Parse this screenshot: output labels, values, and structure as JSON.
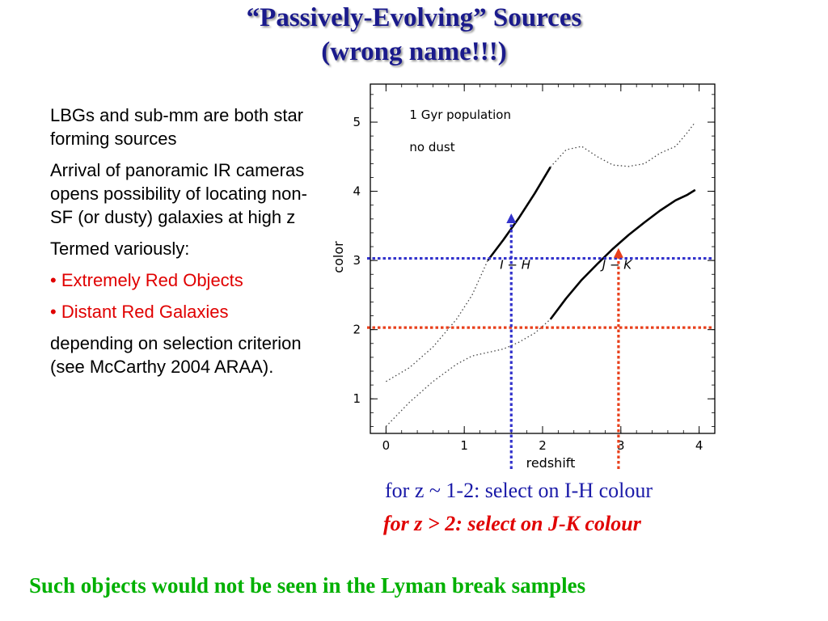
{
  "slide": {
    "title_line1": "“Passively-Evolving” Sources",
    "title_line2": "(wrong name!!!)",
    "bullets": {
      "p1": "LBGs and sub-mm are both star forming sources",
      "p2": "Arrival of panoramic IR cameras opens possibility of locating non-SF (or dusty) galaxies at high z",
      "p3": "Termed variously:",
      "p4_bullet": "• ",
      "p4": "Extremely Red Objects",
      "p5_bullet": "• ",
      "p5": "Distant Red Galaxies",
      "p6": "depending on selection criterion (see McCarthy 2004 ARAA)."
    },
    "caption1": "for z ~ 1-2: select on I-H colour",
    "caption2": "for z > 2: select on J-K colour",
    "footer": "Such objects would not be seen in the Lyman break samples",
    "colors": {
      "title": "#1a1a8c",
      "red": "#e00000",
      "blue": "#1a1aa8",
      "green": "#00b000",
      "guide_blue": "#3333cc",
      "guide_red": "#e8401c"
    }
  },
  "chart_data": {
    "type": "line",
    "xlabel": "redshift",
    "ylabel": "color",
    "xlim": [
      -0.2,
      4.2
    ],
    "ylim": [
      0.5,
      5.55
    ],
    "xticks": [
      0,
      1,
      2,
      3,
      4
    ],
    "yticks": [
      1,
      2,
      3,
      4,
      5
    ],
    "annotations": [
      "1 Gyr population",
      "no dust"
    ],
    "series": [
      {
        "name": "I − H",
        "label_at": [
          1.65,
          2.88
        ],
        "dotted": [
          [
            0,
            1.25
          ],
          [
            0.3,
            1.45
          ],
          [
            0.6,
            1.75
          ],
          [
            0.9,
            2.15
          ],
          [
            1.1,
            2.5
          ],
          [
            1.3,
            3.0
          ]
        ],
        "solid": [
          [
            1.3,
            3.0
          ],
          [
            1.5,
            3.3
          ],
          [
            1.7,
            3.62
          ],
          [
            1.9,
            3.97
          ],
          [
            2.1,
            4.35
          ]
        ],
        "dotted_end": [
          [
            2.1,
            4.35
          ],
          [
            2.3,
            4.6
          ],
          [
            2.5,
            4.65
          ],
          [
            2.7,
            4.5
          ],
          [
            2.9,
            4.38
          ],
          [
            3.1,
            4.36
          ],
          [
            3.3,
            4.4
          ],
          [
            3.5,
            4.55
          ],
          [
            3.7,
            4.65
          ],
          [
            3.85,
            4.85
          ],
          [
            3.95,
            5.0
          ]
        ]
      },
      {
        "name": "J − K",
        "label_at": [
          2.95,
          2.88
        ],
        "dotted": [
          [
            0.0,
            0.6
          ],
          [
            0.3,
            0.95
          ],
          [
            0.6,
            1.25
          ],
          [
            0.9,
            1.5
          ],
          [
            1.1,
            1.62
          ],
          [
            1.3,
            1.67
          ],
          [
            1.5,
            1.72
          ],
          [
            1.7,
            1.82
          ],
          [
            1.9,
            1.95
          ],
          [
            2.1,
            2.15
          ]
        ],
        "solid": [
          [
            2.1,
            2.15
          ],
          [
            2.3,
            2.45
          ],
          [
            2.5,
            2.72
          ],
          [
            2.7,
            2.95
          ],
          [
            2.9,
            3.17
          ],
          [
            3.1,
            3.37
          ],
          [
            3.3,
            3.55
          ],
          [
            3.5,
            3.72
          ],
          [
            3.7,
            3.87
          ],
          [
            3.85,
            3.95
          ],
          [
            3.95,
            4.02
          ]
        ]
      }
    ],
    "guides": [
      {
        "orient": "h",
        "y": 3.03,
        "color": "blue"
      },
      {
        "orient": "h",
        "y": 2.03,
        "color": "red"
      },
      {
        "orient": "v",
        "x": 1.6,
        "y_top": 3.68,
        "color": "blue"
      },
      {
        "orient": "v",
        "x": 2.97,
        "y_top": 3.18,
        "color": "red"
      }
    ]
  }
}
